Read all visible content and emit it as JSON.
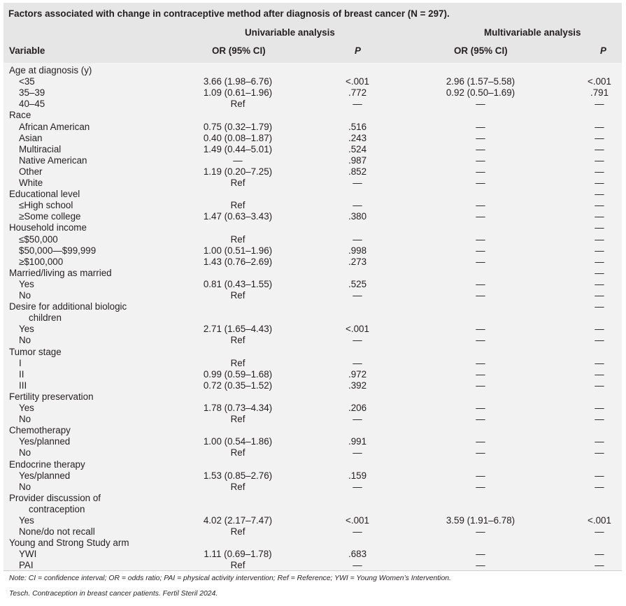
{
  "title": "Factors associated with change in contraceptive method after diagnosis of breast cancer (N = 297).",
  "header": {
    "group_univariable": "Univariable analysis",
    "group_multivariable": "Multivariable analysis",
    "col_variable": "Variable",
    "col_or_uni": "OR (95% CI)",
    "col_p_uni": "P",
    "col_or_multi": "OR (95% CI)",
    "col_p_multi": "P"
  },
  "rows": [
    {
      "label": "Age at diagnosis (y)",
      "level": 0,
      "or1": "",
      "p1": "",
      "or2": "",
      "p2": ""
    },
    {
      "label": "<35",
      "level": 1,
      "or1": "3.66 (1.98–6.76)",
      "p1": "<.001",
      "or2": "2.96 (1.57–5.58)",
      "p2": "<.001"
    },
    {
      "label": "35–39",
      "level": 1,
      "or1": "1.09 (0.61–1.96)",
      "p1": ".772",
      "or2": "0.92 (0.50–1.69)",
      "p2": ".791"
    },
    {
      "label": "40–45",
      "level": 1,
      "or1": "Ref",
      "p1": "—",
      "or2": "—",
      "p2": "—"
    },
    {
      "label": "Race",
      "level": 0,
      "or1": "",
      "p1": "",
      "or2": "",
      "p2": ""
    },
    {
      "label": "African American",
      "level": 1,
      "or1": "0.75 (0.32–1.79)",
      "p1": ".516",
      "or2": "—",
      "p2": "—"
    },
    {
      "label": "Asian",
      "level": 1,
      "or1": "0.40 (0.08–1.87)",
      "p1": ".243",
      "or2": "—",
      "p2": "—"
    },
    {
      "label": "Multiracial",
      "level": 1,
      "or1": "1.49 (0.44–5.01)",
      "p1": ".524",
      "or2": "—",
      "p2": "—"
    },
    {
      "label": "Native American",
      "level": 1,
      "or1": "—",
      "p1": ".987",
      "or2": "—",
      "p2": "—"
    },
    {
      "label": "Other",
      "level": 1,
      "or1": "1.19 (0.20–7.25)",
      "p1": ".852",
      "or2": "—",
      "p2": "—"
    },
    {
      "label": "White",
      "level": 1,
      "or1": "Ref",
      "p1": "—",
      "or2": "—",
      "p2": "—"
    },
    {
      "label": "Educational level",
      "level": 0,
      "or1": "",
      "p1": "",
      "or2": "",
      "p2": "—"
    },
    {
      "label": "≤High school",
      "level": 1,
      "or1": "Ref",
      "p1": "—",
      "or2": "—",
      "p2": "—"
    },
    {
      "label": "≥Some college",
      "level": 1,
      "or1": "1.47 (0.63–3.43)",
      "p1": ".380",
      "or2": "—",
      "p2": "—"
    },
    {
      "label": "Household income",
      "level": 0,
      "or1": "",
      "p1": "",
      "or2": "",
      "p2": "—"
    },
    {
      "label": "≤$50,000",
      "level": 1,
      "or1": "Ref",
      "p1": "—",
      "or2": "—",
      "p2": "—"
    },
    {
      "label": "$50,000—$99,999",
      "level": 1,
      "or1": "1.00 (0.51–1.96)",
      "p1": ".998",
      "or2": "—",
      "p2": "—"
    },
    {
      "label": "≥$100,000",
      "level": 1,
      "or1": "1.43 (0.76–2.69)",
      "p1": ".273",
      "or2": "—",
      "p2": "—"
    },
    {
      "label": "Married/living as married",
      "level": 0,
      "or1": "",
      "p1": "",
      "or2": "",
      "p2": "—"
    },
    {
      "label": "Yes",
      "level": 1,
      "or1": "0.81 (0.43–1.55)",
      "p1": ".525",
      "or2": "—",
      "p2": "—"
    },
    {
      "label": "No",
      "level": 1,
      "or1": "Ref",
      "p1": "—",
      "or2": "—",
      "p2": "—"
    },
    {
      "label": "Desire for additional biologic",
      "level": 0,
      "or1": "",
      "p1": "",
      "or2": "",
      "p2": "—"
    },
    {
      "label": "children",
      "level": 2,
      "or1": "",
      "p1": "",
      "or2": "",
      "p2": ""
    },
    {
      "label": "Yes",
      "level": 1,
      "or1": "2.71 (1.65–4.43)",
      "p1": "<.001",
      "or2": "—",
      "p2": "—"
    },
    {
      "label": "No",
      "level": 1,
      "or1": "Ref",
      "p1": "—",
      "or2": "—",
      "p2": "—"
    },
    {
      "label": "Tumor stage",
      "level": 0,
      "or1": "",
      "p1": "",
      "or2": "",
      "p2": ""
    },
    {
      "label": "I",
      "level": 1,
      "or1": "Ref",
      "p1": "—",
      "or2": "—",
      "p2": "—"
    },
    {
      "label": "II",
      "level": 1,
      "or1": "0.99 (0.59–1.68)",
      "p1": ".972",
      "or2": "—",
      "p2": "—"
    },
    {
      "label": "III",
      "level": 1,
      "or1": "0.72 (0.35–1.52)",
      "p1": ".392",
      "or2": "—",
      "p2": "—"
    },
    {
      "label": "Fertility preservation",
      "level": 0,
      "or1": "",
      "p1": "",
      "or2": "",
      "p2": ""
    },
    {
      "label": "Yes",
      "level": 1,
      "or1": "1.78 (0.73–4.34)",
      "p1": ".206",
      "or2": "—",
      "p2": "—"
    },
    {
      "label": "No",
      "level": 1,
      "or1": "Ref",
      "p1": "—",
      "or2": "—",
      "p2": "—"
    },
    {
      "label": "Chemotherapy",
      "level": 0,
      "or1": "",
      "p1": "",
      "or2": "",
      "p2": ""
    },
    {
      "label": "Yes/planned",
      "level": 1,
      "or1": "1.00 (0.54–1.86)",
      "p1": ".991",
      "or2": "—",
      "p2": "—"
    },
    {
      "label": "No",
      "level": 1,
      "or1": "Ref",
      "p1": "—",
      "or2": "—",
      "p2": "—"
    },
    {
      "label": "Endocrine therapy",
      "level": 0,
      "or1": "",
      "p1": "",
      "or2": "",
      "p2": ""
    },
    {
      "label": "Yes/planned",
      "level": 1,
      "or1": "1.53 (0.85–2.76)",
      "p1": ".159",
      "or2": "—",
      "p2": "—"
    },
    {
      "label": "No",
      "level": 1,
      "or1": "Ref",
      "p1": "—",
      "or2": "—",
      "p2": "—"
    },
    {
      "label": "Provider discussion of",
      "level": 0,
      "or1": "",
      "p1": "",
      "or2": "",
      "p2": ""
    },
    {
      "label": "contraception",
      "level": 2,
      "or1": "",
      "p1": "",
      "or2": "",
      "p2": ""
    },
    {
      "label": "Yes",
      "level": 1,
      "or1": "4.02 (2.17–7.47)",
      "p1": "<.001",
      "or2": "3.59 (1.91–6.78)",
      "p2": "<.001"
    },
    {
      "label": "None/do not recall",
      "level": 1,
      "or1": "Ref",
      "p1": "—",
      "or2": "—",
      "p2": "—"
    },
    {
      "label": "Young and Strong Study arm",
      "level": 0,
      "or1": "",
      "p1": "",
      "or2": "",
      "p2": ""
    },
    {
      "label": "YWI",
      "level": 1,
      "or1": "1.11 (0.69–1.78)",
      "p1": ".683",
      "or2": "—",
      "p2": "—"
    },
    {
      "label": "PAI",
      "level": 1,
      "or1": "Ref",
      "p1": "—",
      "or2": "—",
      "p2": "—"
    }
  ],
  "note": "Note: CI = confidence interval; OR = odds ratio; PAI = physical activity intervention; Ref = Reference; YWI = Young Women’s Intervention.",
  "citation": "Tesch. Contraception in breast cancer patients. Fertil Steril 2024."
}
